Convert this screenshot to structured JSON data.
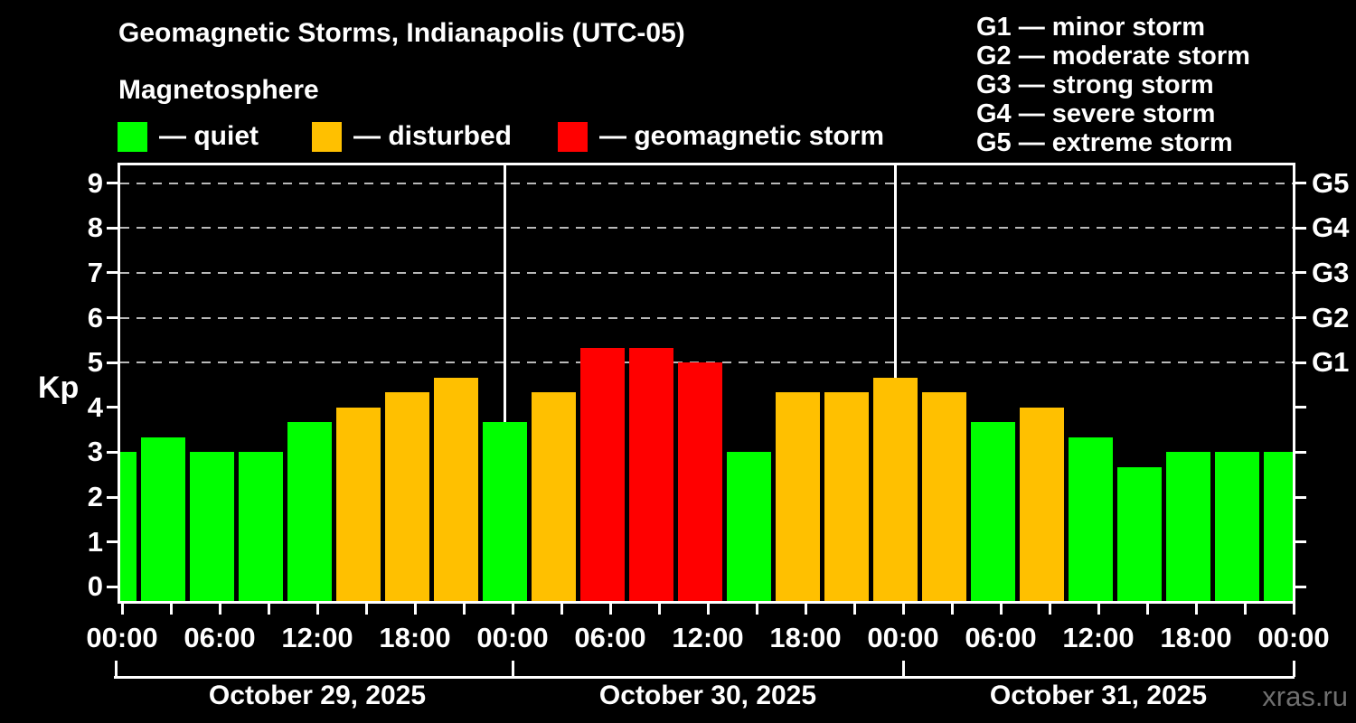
{
  "header": {
    "title": "Geomagnetic Storms, Indianapolis (UTC-05)",
    "subtitle": "Magnetosphere"
  },
  "legend": {
    "items": [
      {
        "label": "quiet",
        "display": "— quiet",
        "color": "#00ff00"
      },
      {
        "label": "disturbed",
        "display": "— disturbed",
        "color": "#ffc000"
      },
      {
        "label": "geomagnetic storm",
        "display": "— geomagnetic storm",
        "color": "#ff0000"
      }
    ]
  },
  "g_legend": {
    "items": [
      {
        "code": "G1",
        "label": "minor storm",
        "display": "G1 — minor storm"
      },
      {
        "code": "G2",
        "label": "moderate storm",
        "display": "G2 — moderate storm"
      },
      {
        "code": "G3",
        "label": "strong storm",
        "display": "G3 — strong storm"
      },
      {
        "code": "G4",
        "label": "severe storm",
        "display": "G4 — severe storm"
      },
      {
        "code": "G5",
        "label": "extreme storm",
        "display": "G5 — extreme storm"
      }
    ]
  },
  "axes": {
    "y_label": "Kp",
    "y_ticks": [
      0,
      1,
      2,
      3,
      4,
      5,
      6,
      7,
      8,
      9
    ],
    "right_g_labels": [
      {
        "text": "G5",
        "kp": 9
      },
      {
        "text": "G4",
        "kp": 8
      },
      {
        "text": "G3",
        "kp": 7
      },
      {
        "text": "G2",
        "kp": 6
      },
      {
        "text": "G1",
        "kp": 5
      }
    ],
    "time_labels": [
      "00:00",
      "06:00",
      "12:00",
      "18:00",
      "00:00",
      "06:00",
      "12:00",
      "18:00",
      "00:00",
      "06:00",
      "12:00",
      "18:00",
      "00:00"
    ],
    "dates": [
      "October 29, 2025",
      "October 30, 2025",
      "October 31, 2025"
    ]
  },
  "watermark": "xras.ru",
  "chart_data": {
    "type": "bar",
    "title": "Geomagnetic Storms, Indianapolis (UTC-05)",
    "ylabel": "Kp",
    "ylim": [
      0,
      9
    ],
    "bar_interval_hours": 3,
    "x_note": "25 consecutive 3-hour Kp bars spanning the axis from 00:00 October 29, 2025 to the final 00:00 tick; first and last bars are clipped at the plot edges",
    "values": [
      3.0,
      3.33,
      3.0,
      3.0,
      3.67,
      4.0,
      4.33,
      4.67,
      3.67,
      4.33,
      5.33,
      5.33,
      5.0,
      3.0,
      4.33,
      4.33,
      4.67,
      4.33,
      3.67,
      4.0,
      3.33,
      2.67,
      3.0,
      3.0,
      3.0
    ],
    "statuses": [
      "quiet",
      "quiet",
      "quiet",
      "quiet",
      "quiet",
      "disturbed",
      "disturbed",
      "disturbed",
      "quiet",
      "disturbed",
      "storm",
      "storm",
      "storm",
      "quiet",
      "disturbed",
      "disturbed",
      "disturbed",
      "disturbed",
      "quiet",
      "disturbed",
      "quiet",
      "quiet",
      "quiet",
      "quiet",
      "quiet"
    ],
    "status_colors": {
      "quiet": "#00ff00",
      "disturbed": "#ffc000",
      "storm": "#ff0000"
    },
    "thresholds": {
      "disturbed_kp": 4,
      "storm_kp": 5
    },
    "gridlines_kp": [
      5,
      6,
      7,
      8,
      9
    ],
    "g_scale": {
      "G1": 5,
      "G2": 6,
      "G3": 7,
      "G4": 8,
      "G5": 9
    },
    "day_boundary_lines_after_bar_index": [
      8,
      16
    ],
    "grid": "dashed horizontal lines at Kp 5–9 only",
    "legend_position": "top"
  }
}
